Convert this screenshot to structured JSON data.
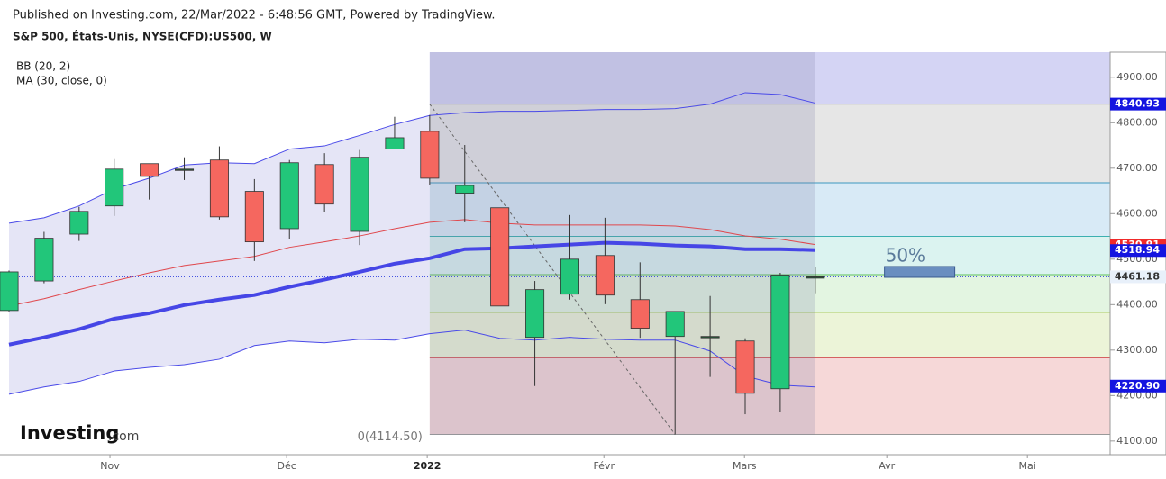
{
  "header": {
    "published": "Published on Investing.com, 22/Mar/2022 - 6:48:56 GMT, Powered by TradingView.",
    "symbol": "S&P 500, États-Unis, NYSE(CFD):US500, W"
  },
  "brand": {
    "name": "Investing",
    "suffix": ".com"
  },
  "chart_data": {
    "type": "candlestick",
    "indicators": [
      "BB (20, 2)",
      "MA (30, close, 0)"
    ],
    "x": [
      0,
      1,
      2,
      3,
      4,
      5,
      6,
      7,
      8,
      9,
      10,
      11,
      12,
      13,
      14,
      15,
      16,
      17,
      18,
      19,
      20,
      21,
      22,
      23
    ],
    "open": [
      4387,
      4452,
      4555,
      4617,
      4710,
      4696,
      4718,
      4649,
      4567,
      4708,
      4561,
      4742,
      4781,
      4645,
      4613,
      4328,
      4423,
      4508,
      4411,
      4330,
      4330,
      4320,
      4215,
      4461
    ],
    "high": [
      4475,
      4560,
      4615,
      4720,
      4710,
      4724,
      4748,
      4676,
      4718,
      4733,
      4740,
      4813,
      4817,
      4751,
      4613,
      4452,
      4597,
      4591,
      4493,
      4385,
      4419,
      4326,
      4470,
      4482
    ],
    "low": [
      4385,
      4447,
      4540,
      4595,
      4631,
      4674,
      4587,
      4496,
      4545,
      4603,
      4531,
      4742,
      4664,
      4581,
      4397,
      4221,
      4411,
      4401,
      4327,
      4114.5,
      4241,
      4159,
      4163,
      4425
    ],
    "close": [
      4472,
      4546,
      4605,
      4698,
      4682,
      4698,
      4593,
      4538,
      4712,
      4621,
      4724,
      4767,
      4678,
      4662,
      4397,
      4433,
      4500,
      4421,
      4348,
      4385,
      4328,
      4205,
      4465,
      4461.18
    ],
    "up_color": "#22c67a",
    "down_color": "#f5675f",
    "series": [
      {
        "name": "BB upper",
        "color": "#4a4ae8",
        "values": [
          4579,
          4591,
          4617,
          4654,
          4678,
          4707,
          4712,
          4710,
          4742,
          4749,
          4772,
          4796,
          4816,
          4822,
          4825,
          4825,
          4827,
          4829,
          4829,
          4831,
          4841,
          4866,
          4862,
          4843
        ]
      },
      {
        "name": "BB basis",
        "color": "#e0474c",
        "values": [
          4397,
          4413,
          4433,
          4452,
          4470,
          4486,
          4496,
          4506,
          4526,
          4538,
          4551,
          4567,
          4581,
          4587,
          4579,
          4575,
          4575,
          4575,
          4575,
          4573,
          4565,
          4551,
          4544,
          4532
        ]
      },
      {
        "name": "BB lower",
        "color": "#4a4ae8",
        "values": [
          4203,
          4219,
          4231,
          4254,
          4262,
          4268,
          4280,
          4310,
          4320,
          4316,
          4324,
          4322,
          4336,
          4344,
          4326,
          4322,
          4328,
          4324,
          4322,
          4322,
          4298,
          4243,
          4223,
          4219
        ]
      },
      {
        "name": "MA 30",
        "color": "#4646e6",
        "values": [
          4312,
          4328,
          4346,
          4369,
          4381,
          4399,
          4411,
          4421,
          4439,
          4455,
          4472,
          4490,
          4502,
          4522,
          4524,
          4528,
          4532,
          4536,
          4534,
          4530,
          4528,
          4522,
          4522,
          4520
        ]
      }
    ],
    "fib": {
      "levels": [
        4840.93,
        4668,
        4550,
        4466,
        4383,
        4283,
        4114.5
      ],
      "label": "0(4114.50)",
      "mid_label": "50%"
    },
    "price_labels": [
      {
        "value": 4840.93,
        "color": "#1515e0"
      },
      {
        "value": 4530.91,
        "color": "#f02a2a"
      },
      {
        "value": 4518.94,
        "color": "#1515e0"
      },
      {
        "value": 4461.18,
        "color": "#e8f0fa"
      },
      {
        "value": 4220.9,
        "label": "4220.90",
        "color": "#1515e0"
      }
    ],
    "xlim": [
      -0.257,
      31.41
    ],
    "ylim": [
      4070,
      4955
    ],
    "xticks": [
      {
        "value": 2.88,
        "label": "Nov"
      },
      {
        "value": 7.92,
        "label": "Déc"
      },
      {
        "value": 11.93,
        "label": "2022"
      },
      {
        "value": 16.97,
        "label": "Févr"
      },
      {
        "value": 20.98,
        "label": "Mars"
      },
      {
        "value": 25.04,
        "label": "Avr"
      },
      {
        "value": 29.05,
        "label": "Mai"
      }
    ],
    "yticks": [
      {
        "value": 4100,
        "label": "4100.00"
      },
      {
        "value": 4200,
        "label": "4200.00"
      },
      {
        "value": 4300,
        "label": "4300.00"
      },
      {
        "value": 4400,
        "label": "4400.00"
      },
      {
        "value": 4500,
        "label": "4500.00"
      },
      {
        "value": 4600,
        "label": "4600.00"
      },
      {
        "value": 4700,
        "label": "4700.00"
      },
      {
        "value": 4800,
        "label": "4800.00"
      },
      {
        "value": 4900,
        "label": "4900.00"
      }
    ]
  }
}
